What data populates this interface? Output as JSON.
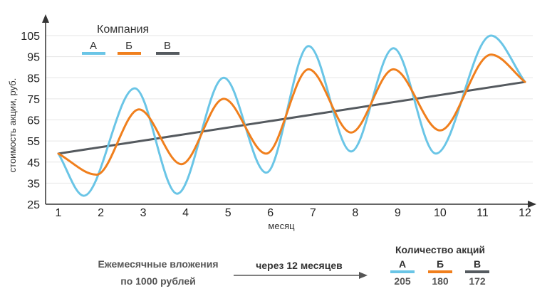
{
  "colors": {
    "A": "#6ac5e6",
    "B": "#f07f1d",
    "V": "#555a5f",
    "axis": "#333333",
    "grid": "#e6e6e6",
    "text": "#222222",
    "muted": "#555555"
  },
  "chart_data": {
    "type": "line",
    "title": "",
    "xlabel": "месяц",
    "ylabel": "стоимость акции, руб.",
    "x": [
      1,
      2,
      3,
      4,
      5,
      6,
      7,
      8,
      9,
      10,
      11,
      12
    ],
    "xlim": [
      1,
      12
    ],
    "ylim": [
      25,
      105
    ],
    "yticks": [
      25,
      35,
      45,
      55,
      65,
      75,
      85,
      95,
      105
    ],
    "grid": "horizontal",
    "legend_title": "Компания",
    "legend_position": "top-left",
    "series": [
      {
        "name": "А",
        "color_key": "A",
        "points": [
          [
            1,
            49
          ],
          [
            1.6,
            29
          ],
          [
            2.8,
            80
          ],
          [
            3.8,
            30
          ],
          [
            4.9,
            85
          ],
          [
            5.9,
            40
          ],
          [
            6.9,
            100
          ],
          [
            7.9,
            50
          ],
          [
            8.9,
            99
          ],
          [
            9.9,
            49
          ],
          [
            11.2,
            105
          ],
          [
            12,
            83
          ]
        ]
      },
      {
        "name": "Б",
        "color_key": "B",
        "points": [
          [
            1,
            49
          ],
          [
            1.9,
            39
          ],
          [
            2.9,
            70
          ],
          [
            3.9,
            44
          ],
          [
            4.9,
            75
          ],
          [
            5.9,
            49
          ],
          [
            6.9,
            89
          ],
          [
            7.9,
            59
          ],
          [
            8.9,
            89
          ],
          [
            10,
            60
          ],
          [
            11.2,
            96
          ],
          [
            12,
            83
          ]
        ]
      },
      {
        "name": "В",
        "color_key": "V",
        "points": [
          [
            1,
            49
          ],
          [
            12,
            83
          ]
        ]
      }
    ]
  },
  "footer": {
    "investment_line1": "Ежемесячные вложения",
    "investment_line2": "по 1000 рублей",
    "arrow_label": "через 12 месяцев",
    "shares_title": "Количество акций",
    "shares": [
      {
        "name": "А",
        "value": "205",
        "color_key": "A"
      },
      {
        "name": "Б",
        "value": "180",
        "color_key": "B"
      },
      {
        "name": "В",
        "value": "172",
        "color_key": "V"
      }
    ]
  }
}
